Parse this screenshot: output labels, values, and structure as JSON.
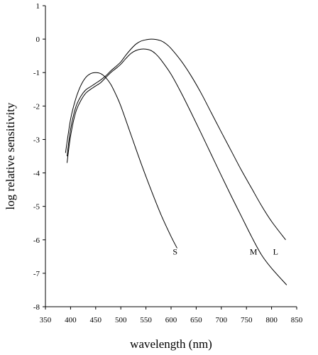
{
  "chart_data": {
    "type": "line",
    "xlabel": "wavelength (nm)",
    "ylabel": "log relative sensitivity",
    "xlim": [
      350,
      850
    ],
    "ylim": [
      -8,
      1
    ],
    "x_ticks": [
      "350",
      "400",
      "450",
      "500",
      "550",
      "600",
      "650",
      "700",
      "750",
      "800",
      "850"
    ],
    "y_ticks": [
      "1",
      "0",
      "-1",
      "-2",
      "-3",
      "-4",
      "-5",
      "-6",
      "-7",
      "-8"
    ],
    "grid": false,
    "series": [
      {
        "name": "S",
        "x": [
          390,
          400,
          410,
          420,
          430,
          440,
          450,
          460,
          470,
          480,
          490,
          500,
          520,
          540,
          560,
          580,
          600,
          612
        ],
        "y": [
          -3.4,
          -2.4,
          -1.8,
          -1.4,
          -1.15,
          -1.03,
          -1.0,
          -1.03,
          -1.15,
          -1.35,
          -1.65,
          -2.0,
          -2.85,
          -3.7,
          -4.5,
          -5.25,
          -5.9,
          -6.25
        ]
      },
      {
        "name": "M",
        "x": [
          393,
          400,
          410,
          420,
          430,
          440,
          450,
          460,
          470,
          480,
          490,
          500,
          510,
          520,
          530,
          540,
          550,
          560,
          570,
          580,
          600,
          620,
          640,
          660,
          680,
          700,
          720,
          740,
          760,
          780,
          800,
          830
        ],
        "y": [
          -3.7,
          -2.9,
          -2.2,
          -1.85,
          -1.62,
          -1.5,
          -1.4,
          -1.3,
          -1.15,
          -1.0,
          -0.88,
          -0.75,
          -0.58,
          -0.43,
          -0.34,
          -0.3,
          -0.3,
          -0.34,
          -0.45,
          -0.62,
          -1.05,
          -1.6,
          -2.2,
          -2.82,
          -3.45,
          -4.08,
          -4.7,
          -5.3,
          -5.9,
          -6.45,
          -6.85,
          -7.35
        ]
      },
      {
        "name": "L",
        "x": [
          393,
          400,
          410,
          420,
          430,
          440,
          450,
          460,
          470,
          480,
          490,
          500,
          510,
          520,
          530,
          540,
          550,
          560,
          570,
          580,
          590,
          600,
          620,
          640,
          660,
          680,
          700,
          720,
          740,
          760,
          780,
          800,
          828
        ],
        "y": [
          -3.5,
          -2.7,
          -2.05,
          -1.72,
          -1.52,
          -1.42,
          -1.32,
          -1.22,
          -1.1,
          -0.95,
          -0.82,
          -0.68,
          -0.48,
          -0.3,
          -0.15,
          -0.06,
          -0.02,
          0.0,
          -0.01,
          -0.05,
          -0.14,
          -0.28,
          -0.65,
          -1.1,
          -1.62,
          -2.2,
          -2.78,
          -3.35,
          -3.92,
          -4.45,
          -4.98,
          -5.45,
          -6.0
        ]
      }
    ],
    "series_labels": [
      {
        "text": "S",
        "x": 608,
        "y": -6.35
      },
      {
        "text": "M",
        "x": 764,
        "y": -6.35
      },
      {
        "text": "L",
        "x": 808,
        "y": -6.35
      }
    ]
  }
}
